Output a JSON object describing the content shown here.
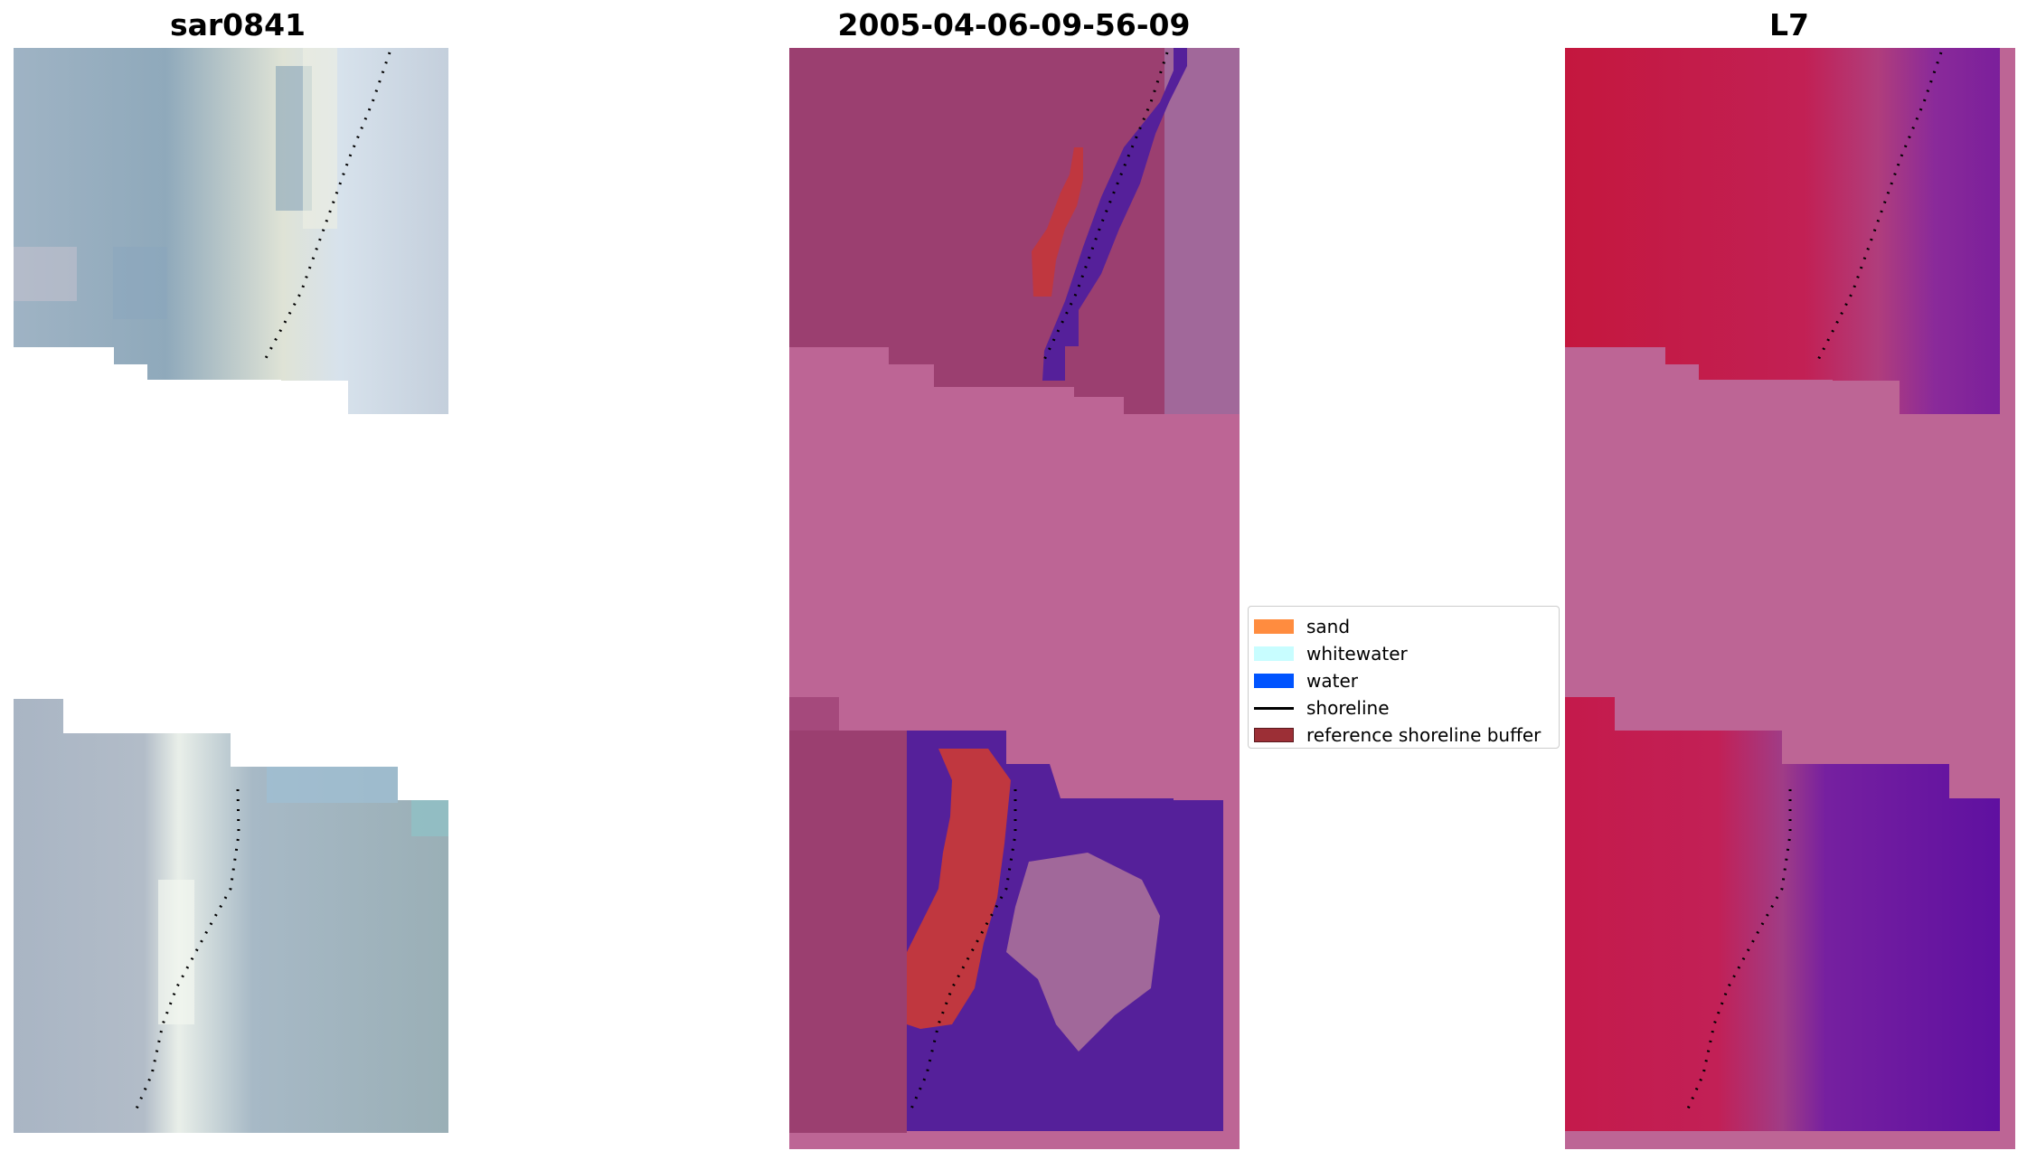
{
  "panels": {
    "left_title": "sar0841",
    "middle_title": "2005-04-06-09-56-09",
    "right_title": "L7"
  },
  "legend": {
    "items": [
      {
        "label": "sand",
        "color": "#ff8c3f",
        "kind": "patch"
      },
      {
        "label": "whitewater",
        "color": "#c8fdff",
        "kind": "patch"
      },
      {
        "label": "water",
        "color": "#0054ff",
        "kind": "patch"
      },
      {
        "label": "shoreline",
        "color": "#000000",
        "kind": "line"
      },
      {
        "label": "reference shoreline buffer",
        "color": "#9c2f36",
        "kind": "patch-edged"
      }
    ]
  },
  "colors": {
    "nodata": "#bd6595",
    "classified_water": "#55209a",
    "buffer": "#c0373f",
    "land_left": "#a8b8c6",
    "land_right_red": "#c41c46",
    "water_right_purple": "#7a1f9c"
  }
}
